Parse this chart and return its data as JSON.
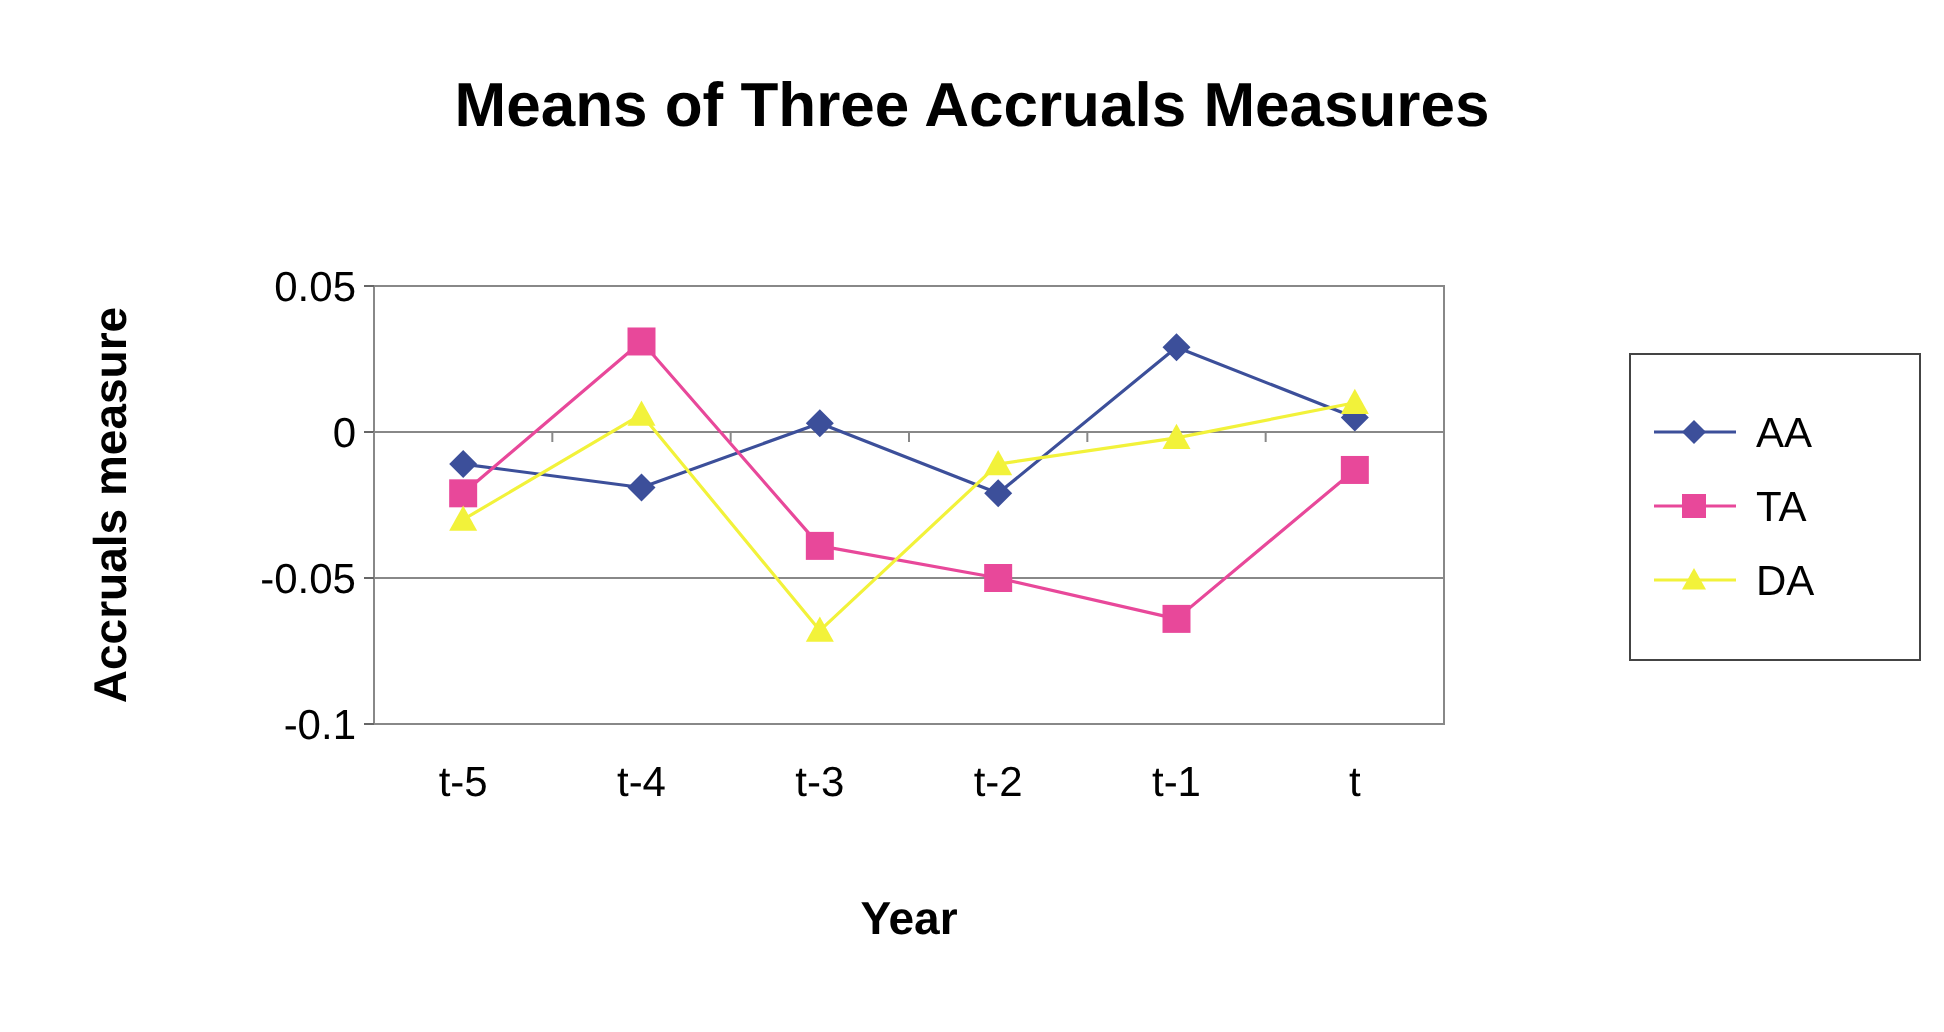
{
  "chart_data": {
    "type": "line",
    "title": "Means of Three Accruals Measures",
    "xlabel": "Year",
    "ylabel": "Accruals measure",
    "categories": [
      "t-5",
      "t-4",
      "t-3",
      "t-2",
      "t-1",
      "t"
    ],
    "series": [
      {
        "name": "AA",
        "color": "#3c4f9a",
        "values": [
          -0.011,
          -0.019,
          0.003,
          -0.021,
          0.029,
          0.005
        ],
        "marker": "diamond"
      },
      {
        "name": "TA",
        "color": "#e8489a",
        "values": [
          -0.021,
          0.031,
          -0.039,
          -0.05,
          -0.064,
          -0.013
        ],
        "marker": "square"
      },
      {
        "name": "DA",
        "color": "#f2f23a",
        "values": [
          -0.03,
          0.006,
          -0.068,
          -0.011,
          -0.002,
          0.01
        ],
        "marker": "triangle"
      }
    ],
    "ylim": [
      -0.1,
      0.05
    ],
    "yticks": [
      {
        "value": 0.05,
        "label": "0.05"
      },
      0,
      {
        "value": -0.05,
        "label": "-0.05"
      },
      {
        "value": -0.1,
        "label": "-0.1"
      }
    ],
    "grid": "y",
    "legend": "right"
  }
}
